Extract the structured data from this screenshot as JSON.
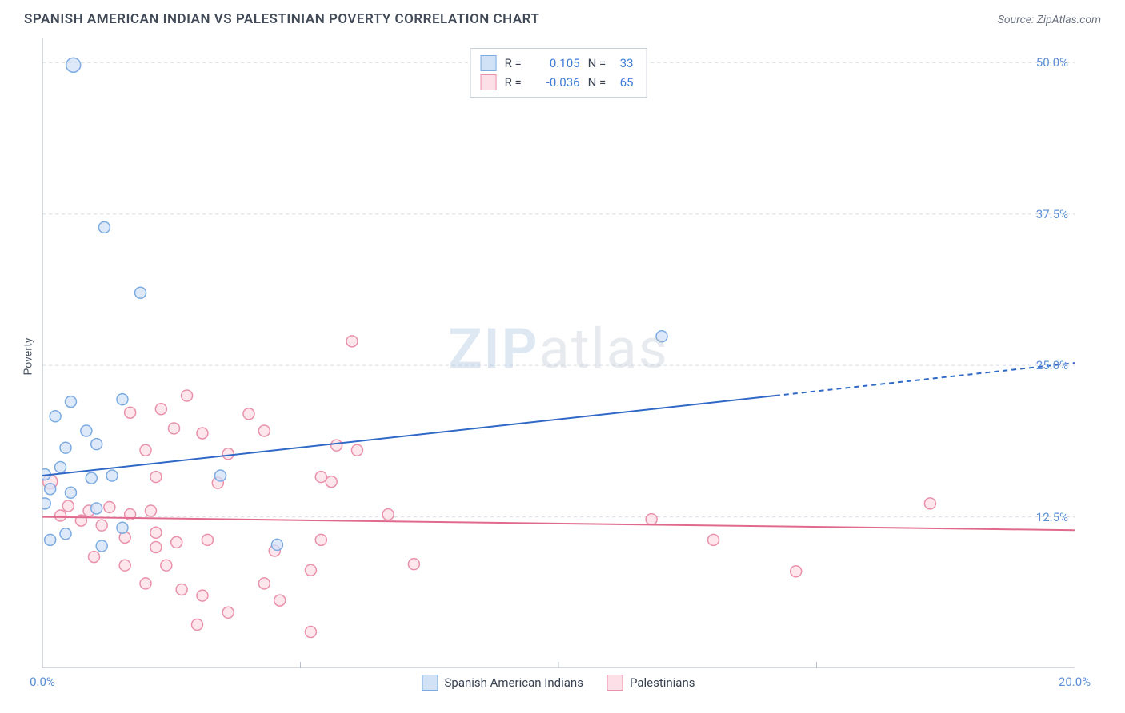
{
  "header": {
    "title": "SPANISH AMERICAN INDIAN VS PALESTINIAN POVERTY CORRELATION CHART",
    "source": "Source: ZipAtlas.com"
  },
  "watermark": {
    "zip": "ZIP",
    "atlas": "atlas"
  },
  "ylabel": "Poverty",
  "chart": {
    "type": "scatter",
    "xlim": [
      0,
      20
    ],
    "ylim": [
      0,
      52
    ],
    "background_color": "#ffffff",
    "grid_color": "#d7dce2",
    "grid_dash": "4,4",
    "axis_color": "#b6bfca",
    "yticks": [
      {
        "v": 12.5,
        "label": "12.5%"
      },
      {
        "v": 25.0,
        "label": "25.0%"
      },
      {
        "v": 37.5,
        "label": "37.5%"
      },
      {
        "v": 50.0,
        "label": "50.0%"
      }
    ],
    "xticks": [
      {
        "v": 0,
        "label": "0.0%"
      },
      {
        "v": 20,
        "label": "20.0%"
      }
    ],
    "xtick_minor": [
      5,
      10,
      15
    ],
    "tick_label_color": "#5b8fd6",
    "marker_radius_small": 7,
    "marker_radius_large": 9,
    "marker_stroke_width": 1.5,
    "trend_line_width": 2.0,
    "series": [
      {
        "name": "Spanish American Indians",
        "fill": "#d2e2f6",
        "stroke": "#7cabe2",
        "trend_color": "#2f68c6",
        "R": "0.105",
        "N": "33",
        "trend": {
          "x1": 0,
          "y1": 15.9,
          "x2": 14.2,
          "y2": 22.5,
          "dash_x2": 20,
          "dash_y2": 25.2
        },
        "points": [
          {
            "x": 0.6,
            "y": 49.8,
            "r": 9
          },
          {
            "x": 1.2,
            "y": 36.4,
            "r": 7
          },
          {
            "x": 1.9,
            "y": 31.0,
            "r": 7
          },
          {
            "x": 0.55,
            "y": 22.0,
            "r": 7
          },
          {
            "x": 1.55,
            "y": 22.2,
            "r": 7
          },
          {
            "x": 0.25,
            "y": 20.8,
            "r": 7
          },
          {
            "x": 0.85,
            "y": 19.6,
            "r": 7
          },
          {
            "x": 0.45,
            "y": 18.2,
            "r": 7
          },
          {
            "x": 1.05,
            "y": 18.5,
            "r": 7
          },
          {
            "x": 0.35,
            "y": 16.6,
            "r": 7
          },
          {
            "x": 0.95,
            "y": 15.7,
            "r": 7
          },
          {
            "x": 1.35,
            "y": 15.9,
            "r": 7
          },
          {
            "x": 3.45,
            "y": 15.9,
            "r": 7
          },
          {
            "x": 0.15,
            "y": 14.8,
            "r": 7
          },
          {
            "x": 0.55,
            "y": 14.5,
            "r": 7
          },
          {
            "x": 1.05,
            "y": 13.2,
            "r": 7
          },
          {
            "x": 1.55,
            "y": 11.6,
            "r": 7
          },
          {
            "x": 0.45,
            "y": 11.1,
            "r": 7
          },
          {
            "x": 1.15,
            "y": 10.1,
            "r": 7
          },
          {
            "x": 0.15,
            "y": 10.6,
            "r": 7
          },
          {
            "x": 4.55,
            "y": 10.2,
            "r": 7
          },
          {
            "x": 12.0,
            "y": 27.4,
            "r": 7
          },
          {
            "x": 0.05,
            "y": 16.0,
            "r": 7
          },
          {
            "x": 0.05,
            "y": 13.6,
            "r": 7
          }
        ]
      },
      {
        "name": "Palestinians",
        "fill": "#fcdfe7",
        "stroke": "#e991ab",
        "trend_color": "#e06a8e",
        "R": "-0.036",
        "N": "65",
        "trend": {
          "x1": 0,
          "y1": 12.5,
          "x2": 20,
          "y2": 11.4,
          "dash_x2": 20,
          "dash_y2": 11.4
        },
        "points": [
          {
            "x": 6.0,
            "y": 27.0,
            "r": 7
          },
          {
            "x": 2.8,
            "y": 22.5,
            "r": 7
          },
          {
            "x": 1.7,
            "y": 21.1,
            "r": 7
          },
          {
            "x": 2.3,
            "y": 21.4,
            "r": 7
          },
          {
            "x": 4.0,
            "y": 21.0,
            "r": 7
          },
          {
            "x": 2.55,
            "y": 19.8,
            "r": 7
          },
          {
            "x": 4.3,
            "y": 19.6,
            "r": 7
          },
          {
            "x": 3.1,
            "y": 19.4,
            "r": 7
          },
          {
            "x": 2.0,
            "y": 18.0,
            "r": 7
          },
          {
            "x": 3.6,
            "y": 17.7,
            "r": 7
          },
          {
            "x": 5.7,
            "y": 18.4,
            "r": 7
          },
          {
            "x": 6.1,
            "y": 18.0,
            "r": 7
          },
          {
            "x": 2.2,
            "y": 15.8,
            "r": 7
          },
          {
            "x": 3.4,
            "y": 15.3,
            "r": 7
          },
          {
            "x": 5.4,
            "y": 15.8,
            "r": 7
          },
          {
            "x": 5.6,
            "y": 15.4,
            "r": 7
          },
          {
            "x": 0.15,
            "y": 15.4,
            "r": 9
          },
          {
            "x": 0.5,
            "y": 13.4,
            "r": 7
          },
          {
            "x": 0.9,
            "y": 13.0,
            "r": 7
          },
          {
            "x": 1.3,
            "y": 13.3,
            "r": 7
          },
          {
            "x": 1.7,
            "y": 12.7,
            "r": 7
          },
          {
            "x": 2.1,
            "y": 13.0,
            "r": 7
          },
          {
            "x": 0.35,
            "y": 12.6,
            "r": 7
          },
          {
            "x": 0.75,
            "y": 12.2,
            "r": 7
          },
          {
            "x": 1.15,
            "y": 11.8,
            "r": 7
          },
          {
            "x": 6.7,
            "y": 12.7,
            "r": 7
          },
          {
            "x": 1.6,
            "y": 10.8,
            "r": 7
          },
          {
            "x": 2.2,
            "y": 11.2,
            "r": 7
          },
          {
            "x": 2.2,
            "y": 10.0,
            "r": 7
          },
          {
            "x": 2.6,
            "y": 10.4,
            "r": 7
          },
          {
            "x": 3.2,
            "y": 10.6,
            "r": 7
          },
          {
            "x": 5.4,
            "y": 10.6,
            "r": 7
          },
          {
            "x": 1.0,
            "y": 9.2,
            "r": 7
          },
          {
            "x": 1.6,
            "y": 8.5,
            "r": 7
          },
          {
            "x": 2.4,
            "y": 8.5,
            "r": 7
          },
          {
            "x": 4.5,
            "y": 9.7,
            "r": 7
          },
          {
            "x": 5.2,
            "y": 8.1,
            "r": 7
          },
          {
            "x": 7.2,
            "y": 8.6,
            "r": 7
          },
          {
            "x": 2.0,
            "y": 7.0,
            "r": 7
          },
          {
            "x": 2.7,
            "y": 6.5,
            "r": 7
          },
          {
            "x": 3.1,
            "y": 6.0,
            "r": 7
          },
          {
            "x": 4.3,
            "y": 7.0,
            "r": 7
          },
          {
            "x": 3.6,
            "y": 4.6,
            "r": 7
          },
          {
            "x": 4.6,
            "y": 5.6,
            "r": 7
          },
          {
            "x": 3.0,
            "y": 3.6,
            "r": 7
          },
          {
            "x": 5.2,
            "y": 3.0,
            "r": 7
          },
          {
            "x": 11.8,
            "y": 12.3,
            "r": 7
          },
          {
            "x": 13.0,
            "y": 10.6,
            "r": 7
          },
          {
            "x": 14.6,
            "y": 8.0,
            "r": 7
          },
          {
            "x": 17.2,
            "y": 13.6,
            "r": 7
          }
        ]
      }
    ]
  },
  "legend_top_value_color": "#3d7dd8",
  "legend_bottom": [
    {
      "label": "Spanish American Indians",
      "fill": "#d2e2f6",
      "stroke": "#7cabe2"
    },
    {
      "label": "Palestinians",
      "fill": "#fcdfe7",
      "stroke": "#e991ab"
    }
  ]
}
